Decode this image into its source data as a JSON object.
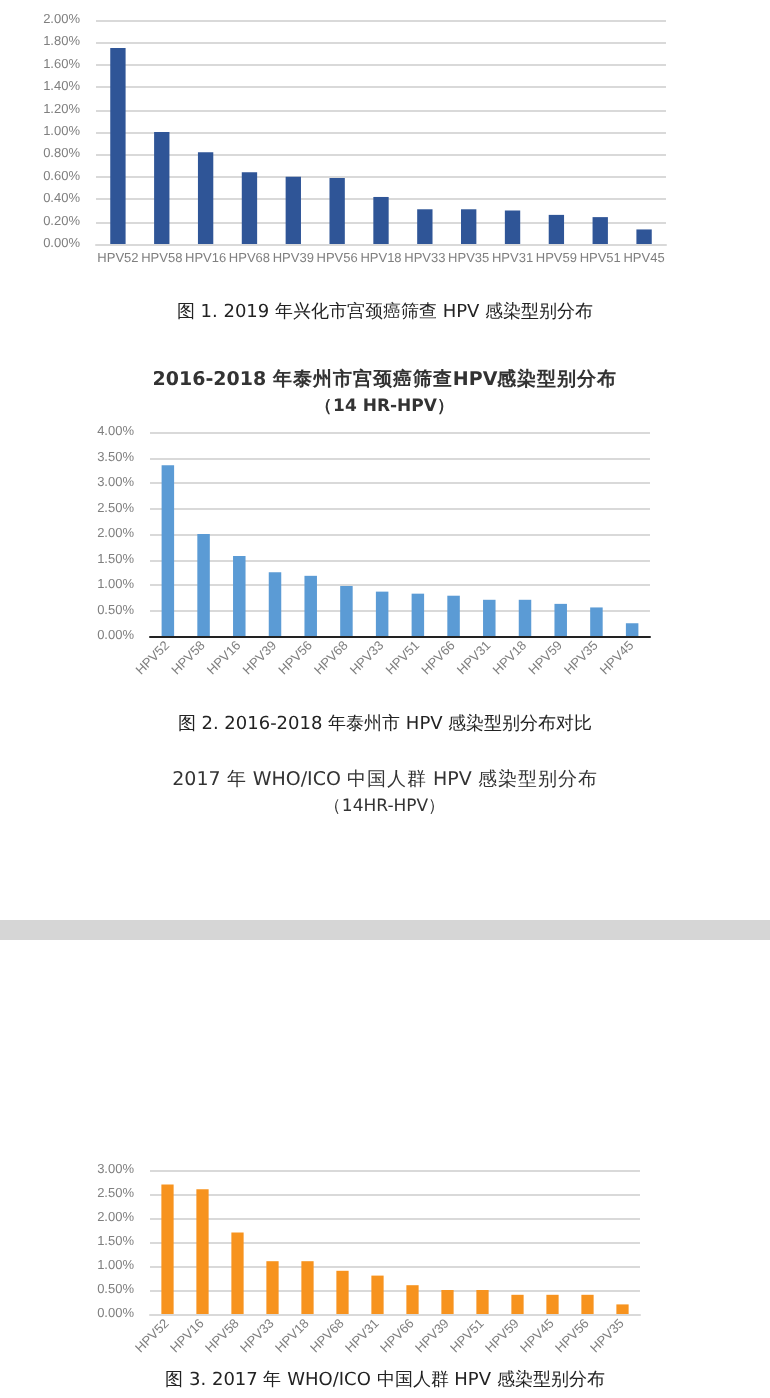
{
  "chart_data": [
    {
      "type": "bar",
      "categories": [
        "HPV52",
        "HPV58",
        "HPV16",
        "HPV68",
        "HPV39",
        "HPV56",
        "HPV18",
        "HPV33",
        "HPV35",
        "HPV31",
        "HPV59",
        "HPV51",
        "HPV45"
      ],
      "series": [
        {
          "color": "#2f5597",
          "values": [
            1.75,
            1.0,
            0.82,
            0.64,
            0.6,
            0.59,
            0.42,
            0.31,
            0.31,
            0.3,
            0.26,
            0.24,
            0.13
          ]
        }
      ],
      "ylim": [
        0,
        2
      ],
      "yticks": [
        {
          "value": 0,
          "label": "0.00%"
        },
        {
          "value": 0.2,
          "label": "0.20%"
        },
        {
          "value": 0.4,
          "label": "0.40%"
        },
        {
          "value": 0.6,
          "label": "0.60%"
        },
        {
          "value": 0.8,
          "label": "0.80%"
        },
        {
          "value": 1,
          "label": "1.00%"
        },
        {
          "value": 1.2,
          "label": "1.20%"
        },
        {
          "value": 1.4,
          "label": "1.40%"
        },
        {
          "value": 1.6,
          "label": "1.60%"
        },
        {
          "value": 1.8,
          "label": "1.80%"
        },
        {
          "value": 2,
          "label": "2.00%"
        }
      ],
      "grid": "y",
      "annotations": [
        "图 1. 2019 年兴化市宫颈癌筛查 HPV 感染型别分布"
      ]
    },
    {
      "type": "bar",
      "title": "2016-2018 年泰州市宫颈癌筛查HPV感染型别分布",
      "subtitle": "（14 HR-HPV）",
      "categories": [
        "HPV52",
        "HPV58",
        "HPV16",
        "HPV39",
        "HPV56",
        "HPV68",
        "HPV33",
        "HPV51",
        "HPV66",
        "HPV31",
        "HPV18",
        "HPV59",
        "HPV35",
        "HPV45"
      ],
      "series": [
        {
          "color": "#5b9bd5",
          "values": [
            3.35,
            2.0,
            1.57,
            1.25,
            1.18,
            0.98,
            0.87,
            0.83,
            0.79,
            0.71,
            0.71,
            0.63,
            0.56,
            0.25
          ]
        }
      ],
      "ylim": [
        0,
        4
      ],
      "yticks": [
        {
          "value": 0,
          "label": "0.00%"
        },
        {
          "value": 0.5,
          "label": "0.50%"
        },
        {
          "value": 1,
          "label": "1.00%"
        },
        {
          "value": 1.5,
          "label": "1.50%"
        },
        {
          "value": 2,
          "label": "2.00%"
        },
        {
          "value": 2.5,
          "label": "2.50%"
        },
        {
          "value": 3,
          "label": "3.00%"
        },
        {
          "value": 3.5,
          "label": "3.50%"
        },
        {
          "value": 4,
          "label": "4.00%"
        }
      ],
      "grid": "y",
      "annotations": [
        "图 2. 2016-2018 年泰州市 HPV 感染型别分布对比"
      ]
    },
    {
      "type": "bar",
      "title": "2017 年 WHO/ICO 中国人群 HPV 感染型别分布",
      "subtitle": "（14HR-HPV）",
      "categories": [
        "HPV52",
        "HPV16",
        "HPV58",
        "HPV33",
        "HPV18",
        "HPV68",
        "HPV31",
        "HPV66",
        "HPV39",
        "HPV51",
        "HPV59",
        "HPV45",
        "HPV56",
        "HPV35"
      ],
      "series": [
        {
          "color": "#f7931e",
          "values": [
            2.7,
            2.6,
            1.7,
            1.1,
            1.1,
            0.9,
            0.8,
            0.6,
            0.5,
            0.5,
            0.4,
            0.4,
            0.4,
            0.2
          ]
        }
      ],
      "ylim": [
        0,
        3
      ],
      "yticks": [
        {
          "value": 0,
          "label": "0.00%"
        },
        {
          "value": 0.5,
          "label": "0.50%"
        },
        {
          "value": 1,
          "label": "1.00%"
        },
        {
          "value": 1.5,
          "label": "1.50%"
        },
        {
          "value": 2,
          "label": "2.00%"
        },
        {
          "value": 2.5,
          "label": "2.50%"
        },
        {
          "value": 3,
          "label": "3.00%"
        }
      ],
      "grid": "y",
      "annotations": [
        "图 3. 2017 年 WHO/ICO 中国人群 HPV 感染型别分布"
      ]
    }
  ]
}
